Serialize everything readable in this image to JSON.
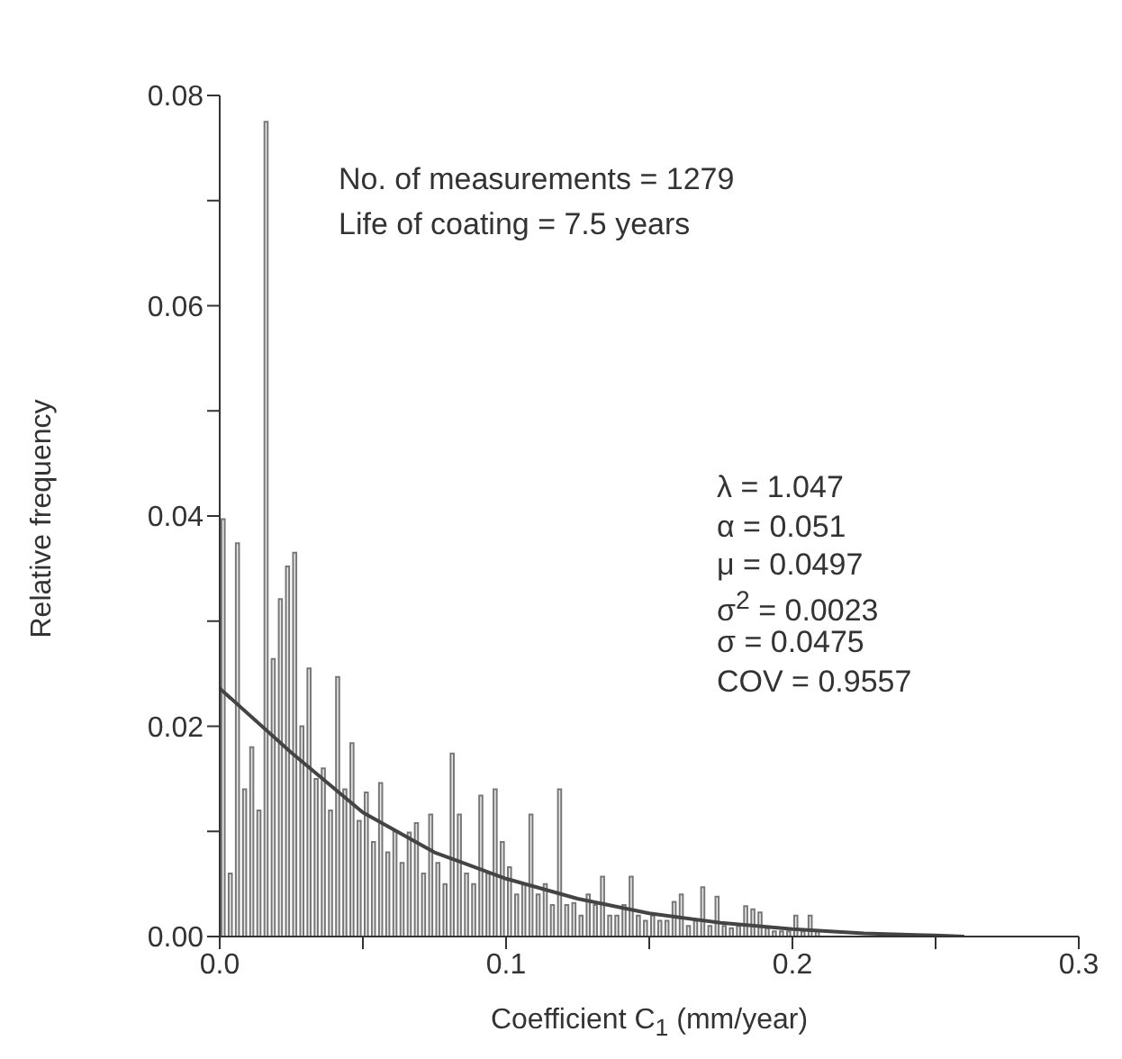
{
  "chart_data": {
    "type": "histogram",
    "xlabel": "Coefficient C$_{1}$ (mm/year)",
    "ylabel": "Relative frequency",
    "xlim": [
      0,
      0.3
    ],
    "xticks": [
      {
        "value": 0,
        "label": "0.0"
      },
      {
        "value": 0.05,
        "label": null
      },
      {
        "value": 0.1,
        "label": "0.1"
      },
      {
        "value": 0.15,
        "label": null
      },
      {
        "value": 0.2,
        "label": "0.2"
      },
      {
        "value": 0.25,
        "label": null
      },
      {
        "value": 0.3,
        "label": "0.3"
      }
    ],
    "ylim": [
      0,
      0.08
    ],
    "yticks": [
      {
        "value": 0,
        "label": "0.00"
      },
      {
        "value": 0.01,
        "label": null
      },
      {
        "value": 0.02,
        "label": "0.02"
      },
      {
        "value": 0.03,
        "label": null
      },
      {
        "value": 0.04,
        "label": "0.04"
      },
      {
        "value": 0.05,
        "label": null
      },
      {
        "value": 0.06,
        "label": "0.06"
      },
      {
        "value": 0.07,
        "label": null
      },
      {
        "value": 0.08,
        "label": "0.08"
      }
    ],
    "annotations": [
      "No. of measurements = 1279",
      "Life of coating = 7.5 years",
      "λ = 1.047",
      "α = 0.051",
      "μ = 0.0497",
      "σ$^{2}$ = 0.0023",
      "σ = 0.0475",
      "COV = 0.9557"
    ],
    "series": [
      {
        "color": "#777777",
        "bins": [
          0,
          0.0025,
          0.005,
          0.0075,
          0.01,
          0.0125,
          0.015,
          0.0175,
          0.02,
          0.0225,
          0.025,
          0.0275,
          0.03,
          0.0325,
          0.035,
          0.0375,
          0.04,
          0.0425,
          0.045,
          0.0475,
          0.05,
          0.0525,
          0.055,
          0.0575,
          0.06,
          0.0625,
          0.065,
          0.0675,
          0.07,
          0.0725,
          0.075,
          0.0775,
          0.08,
          0.0825,
          0.085,
          0.0875,
          0.09,
          0.0925,
          0.095,
          0.0975,
          0.1,
          0.1025,
          0.105,
          0.1075,
          0.11,
          0.1125,
          0.115,
          0.1175,
          0.12,
          0.1225,
          0.125,
          0.1275,
          0.13,
          0.1325,
          0.135,
          0.1375,
          0.14,
          0.1425,
          0.145,
          0.1475,
          0.15,
          0.1525,
          0.155,
          0.1575,
          0.16,
          0.1625,
          0.165,
          0.1675,
          0.17,
          0.1725,
          0.175,
          0.1775,
          0.18,
          0.1825,
          0.185,
          0.1875,
          0.19,
          0.1925,
          0.195,
          0.1975,
          0.2,
          0.2025,
          0.205,
          0.2075,
          0.21
        ],
        "values": [
          0.0397,
          0.006,
          0.0374,
          0.014,
          0.018,
          0.012,
          0.0775,
          0.0264,
          0.0321,
          0.0352,
          0.0365,
          0.02,
          0.0255,
          0.015,
          0.016,
          0.012,
          0.0247,
          0.014,
          0.0184,
          0.011,
          0.0137,
          0.009,
          0.0146,
          0.008,
          0.01,
          0.007,
          0.0099,
          0.0108,
          0.006,
          0.0116,
          0.007,
          0.005,
          0.0174,
          0.0116,
          0.006,
          0.005,
          0.0134,
          0.006,
          0.014,
          0.009,
          0.0066,
          0.004,
          0.005,
          0.0116,
          0.004,
          0.005,
          0.003,
          0.014,
          0.003,
          0.0032,
          0.002,
          0.004,
          0.003,
          0.0057,
          0.002,
          0.002,
          0.003,
          0.0057,
          0.002,
          0.0015,
          0.002,
          0.0015,
          0.0015,
          0.0033,
          0.004,
          0.001,
          0.0015,
          0.0047,
          0.001,
          0.0038,
          0.001,
          0.0008,
          0.001,
          0.0029,
          0.0026,
          0.0023,
          0.0008,
          0.0005,
          0.0005,
          0.0005,
          0.002,
          0.0005,
          0.002,
          0.0005
        ]
      },
      {
        "type": "line",
        "color": "#444444",
        "x": [
          0,
          0.025,
          0.05,
          0.075,
          0.1,
          0.125,
          0.15,
          0.175,
          0.2,
          0.225,
          0.25,
          0.26
        ],
        "values": [
          0.0236,
          0.0175,
          0.0118,
          0.008,
          0.0055,
          0.0036,
          0.0022,
          0.0013,
          0.0007,
          0.0003,
          0.0001,
          0
        ]
      }
    ]
  }
}
